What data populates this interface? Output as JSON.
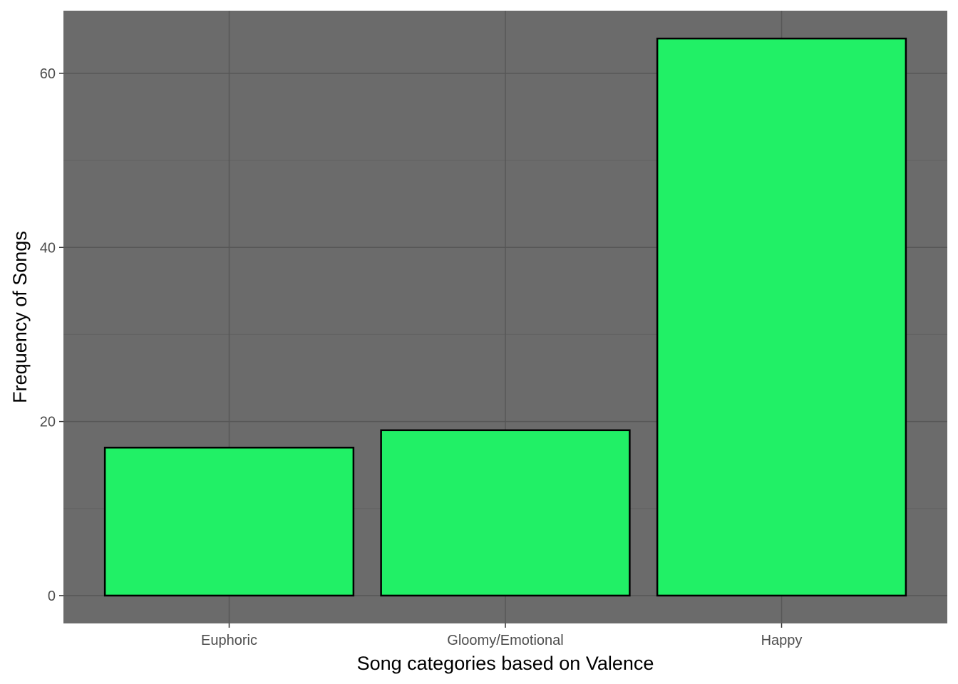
{
  "chart_data": {
    "type": "bar",
    "categories": [
      "Euphoric",
      "Gloomy/Emotional",
      "Happy"
    ],
    "values": [
      17,
      19,
      64
    ],
    "title": "",
    "xlabel": "Song categories based on Valence",
    "ylabel": "Frequency of Songs",
    "ylim": [
      -3.2,
      67.2
    ],
    "yticks": [
      0,
      20,
      40,
      60
    ],
    "ytick_labels": [
      "0",
      "20",
      "40",
      "60"
    ],
    "grid": true,
    "legend": "none",
    "colors": {
      "panel_background": "#6b6b6b",
      "grid_major": "#575757",
      "grid_minor": "#626262",
      "bar_fill": "#21f066",
      "bar_outline": "#000000"
    }
  }
}
